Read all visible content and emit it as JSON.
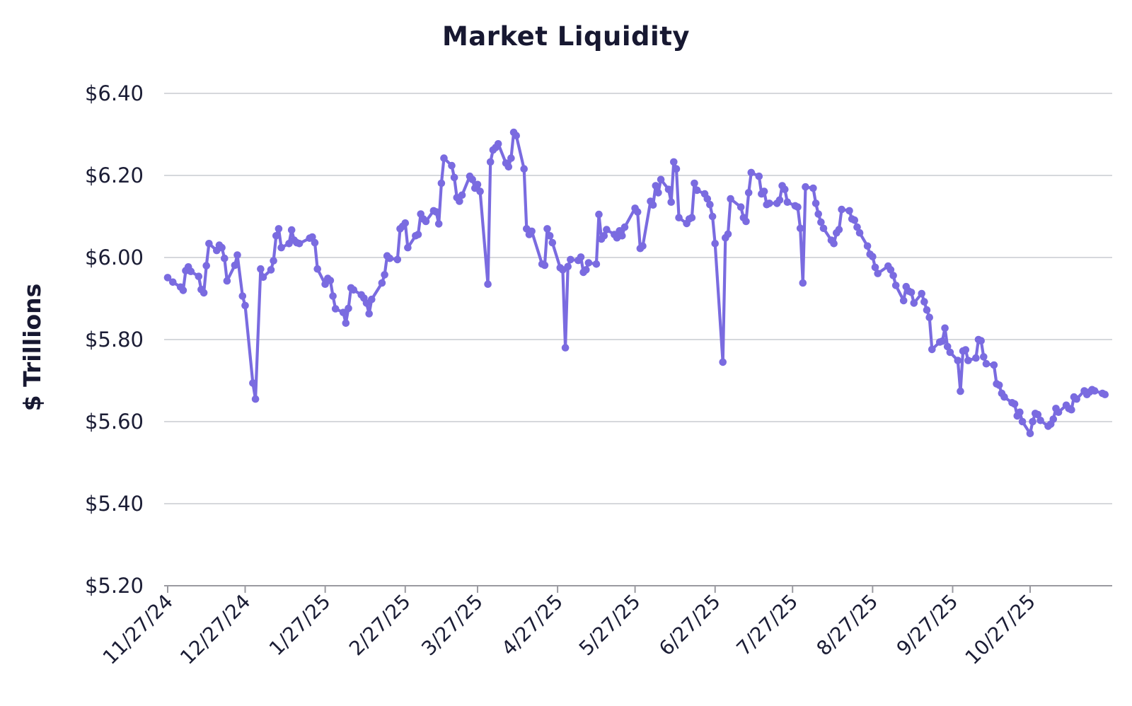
{
  "title": "Market Liquidity",
  "y_axis": {
    "label": "$ Trillions",
    "tick_labels": [
      "$6.40",
      "$6.20",
      "$6.00",
      "$5.80",
      "$5.60",
      "$5.40",
      "$5.20"
    ],
    "tick_values": [
      6.4,
      6.2,
      6.0,
      5.8,
      5.6,
      5.4,
      5.2
    ]
  },
  "x_axis": {
    "tick_labels": [
      "11/27/24",
      "12/27/24",
      "1/27/25",
      "2/27/25",
      "3/27/25",
      "4/27/25",
      "5/27/25",
      "6/27/25",
      "7/27/25",
      "8/27/25",
      "9/27/25",
      "10/27/25"
    ]
  },
  "colors": {
    "line": "#7a6be0",
    "grid": "#c9cbd1",
    "axis": "#9a9aa0",
    "tick_text": "#1b1d35",
    "title_text": "#171831",
    "background": "#ffffff"
  },
  "chart_data": {
    "type": "line",
    "title": "Market Liquidity",
    "xlabel": "",
    "ylabel": "$ Trillions",
    "ylim": [
      5.2,
      6.4
    ],
    "x_start": "11/27/24",
    "x_end": "11/25/25",
    "grid": true,
    "legend_position": "none",
    "marker": "circle",
    "series": [
      {
        "name": "Market Liquidity",
        "dates": [
          "11/27/24",
          "11/29/24",
          "12/2/24",
          "12/3/24",
          "12/4/24",
          "12/5/24",
          "12/6/24",
          "12/9/24",
          "12/10/24",
          "12/11/24",
          "12/12/24",
          "12/13/24",
          "12/16/24",
          "12/17/24",
          "12/18/24",
          "12/19/24",
          "12/20/24",
          "12/23/24",
          "12/24/24",
          "12/26/24",
          "12/27/24",
          "12/30/24",
          "12/31/24",
          "1/2/25",
          "1/3/25",
          "1/6/25",
          "1/7/25",
          "1/8/25",
          "1/9/25",
          "1/10/25",
          "1/13/25",
          "1/14/25",
          "1/15/25",
          "1/16/25",
          "1/17/25",
          "1/21/25",
          "1/22/25",
          "1/23/25",
          "1/24/25",
          "1/27/25",
          "1/28/25",
          "1/29/25",
          "1/30/25",
          "1/31/25",
          "2/3/25",
          "2/4/25",
          "2/5/25",
          "2/6/25",
          "2/7/25",
          "2/10/25",
          "2/11/25",
          "2/12/25",
          "2/13/25",
          "2/14/25",
          "2/18/25",
          "2/19/25",
          "2/20/25",
          "2/21/25",
          "2/24/25",
          "2/25/25",
          "2/26/25",
          "2/27/25",
          "2/28/25",
          "3/3/25",
          "3/4/25",
          "3/5/25",
          "3/6/25",
          "3/7/25",
          "3/10/25",
          "3/11/25",
          "3/12/25",
          "3/13/25",
          "3/14/25",
          "3/17/25",
          "3/18/25",
          "3/19/25",
          "3/20/25",
          "3/21/25",
          "3/24/25",
          "3/25/25",
          "3/26/25",
          "3/27/25",
          "3/28/25",
          "3/31/25",
          "4/1/25",
          "4/2/25",
          "4/3/25",
          "4/4/25",
          "4/7/25",
          "4/8/25",
          "4/9/25",
          "4/10/25",
          "4/11/25",
          "4/14/25",
          "4/15/25",
          "4/16/25",
          "4/17/25",
          "4/21/25",
          "4/22/25",
          "4/23/25",
          "4/24/25",
          "4/25/25",
          "4/28/25",
          "4/29/25",
          "4/30/25",
          "5/1/25",
          "5/2/25",
          "5/5/25",
          "5/6/25",
          "5/7/25",
          "5/8/25",
          "5/9/25",
          "5/12/25",
          "5/13/25",
          "5/14/25",
          "5/15/25",
          "5/16/25",
          "5/19/25",
          "5/20/25",
          "5/21/25",
          "5/22/25",
          "5/23/25",
          "5/27/25",
          "5/28/25",
          "5/29/25",
          "5/30/25",
          "6/2/25",
          "6/3/25",
          "6/4/25",
          "6/5/25",
          "6/6/25",
          "6/9/25",
          "6/10/25",
          "6/11/25",
          "6/12/25",
          "6/13/25",
          "6/16/25",
          "6/17/25",
          "6/18/25",
          "6/19/25",
          "6/20/25",
          "6/23/25",
          "6/24/25",
          "6/25/25",
          "6/26/25",
          "6/27/25",
          "6/30/25",
          "7/1/25",
          "7/2/25",
          "7/3/25",
          "7/7/25",
          "7/8/25",
          "7/9/25",
          "7/10/25",
          "7/11/25",
          "7/14/25",
          "7/15/25",
          "7/16/25",
          "7/17/25",
          "7/18/25",
          "7/21/25",
          "7/22/25",
          "7/23/25",
          "7/24/25",
          "7/25/25",
          "7/28/25",
          "7/29/25",
          "7/30/25",
          "7/31/25",
          "8/1/25",
          "8/4/25",
          "8/5/25",
          "8/6/25",
          "8/7/25",
          "8/8/25",
          "8/11/25",
          "8/12/25",
          "8/13/25",
          "8/14/25",
          "8/15/25",
          "8/18/25",
          "8/19/25",
          "8/20/25",
          "8/21/25",
          "8/22/25",
          "8/25/25",
          "8/26/25",
          "8/27/25",
          "8/28/25",
          "8/29/25",
          "9/2/25",
          "9/3/25",
          "9/4/25",
          "9/5/25",
          "9/8/25",
          "9/9/25",
          "9/10/25",
          "9/11/25",
          "9/12/25",
          "9/15/25",
          "9/16/25",
          "9/17/25",
          "9/18/25",
          "9/19/25",
          "9/22/25",
          "9/23/25",
          "9/24/25",
          "9/25/25",
          "9/26/25",
          "9/29/25",
          "9/30/25",
          "10/1/25",
          "10/2/25",
          "10/3/25",
          "10/6/25",
          "10/7/25",
          "10/8/25",
          "10/9/25",
          "10/10/25",
          "10/13/25",
          "10/14/25",
          "10/15/25",
          "10/16/25",
          "10/17/25",
          "10/20/25",
          "10/21/25",
          "10/22/25",
          "10/23/25",
          "10/24/25",
          "10/27/25",
          "10/28/25",
          "10/29/25",
          "10/30/25",
          "10/31/25",
          "11/3/25",
          "11/4/25",
          "11/5/25",
          "11/6/25",
          "11/7/25",
          "11/10/25",
          "11/11/25",
          "11/12/25",
          "11/13/25",
          "11/14/25",
          "11/17/25",
          "11/18/25",
          "11/19/25",
          "11/20/25",
          "11/21/25",
          "11/24/25",
          "11/25/25"
        ],
        "values": [
          5.951,
          5.94,
          5.928,
          5.92,
          5.968,
          5.977,
          5.966,
          5.954,
          5.922,
          5.914,
          5.98,
          6.034,
          6.017,
          6.03,
          6.024,
          5.998,
          5.943,
          5.981,
          6.006,
          5.906,
          5.883,
          5.694,
          5.655,
          5.972,
          5.952,
          5.97,
          5.992,
          6.053,
          6.07,
          6.024,
          6.034,
          6.067,
          6.042,
          6.036,
          6.034,
          6.047,
          6.05,
          6.036,
          5.972,
          5.935,
          5.949,
          5.944,
          5.906,
          5.875,
          5.866,
          5.84,
          5.876,
          5.926,
          5.921,
          5.909,
          5.901,
          5.889,
          5.863,
          5.898,
          5.938,
          5.958,
          6.004,
          5.998,
          5.995,
          6.07,
          6.076,
          6.084,
          6.024,
          6.053,
          6.056,
          6.106,
          6.094,
          6.088,
          6.114,
          6.111,
          6.082,
          6.181,
          6.242,
          6.224,
          6.195,
          6.146,
          6.137,
          6.152,
          6.198,
          6.19,
          6.169,
          6.178,
          6.161,
          5.935,
          6.233,
          6.262,
          6.268,
          6.277,
          6.23,
          6.221,
          6.242,
          6.305,
          6.297,
          6.216,
          6.07,
          6.056,
          6.064,
          5.984,
          5.981,
          6.07,
          6.053,
          6.036,
          5.975,
          5.97,
          5.78,
          5.978,
          5.995,
          5.993,
          6.001,
          5.964,
          5.97,
          5.987,
          5.984,
          6.105,
          6.045,
          6.053,
          6.068,
          6.056,
          6.048,
          6.065,
          6.053,
          6.074,
          6.12,
          6.111,
          6.022,
          6.028,
          6.137,
          6.128,
          6.175,
          6.158,
          6.19,
          6.166,
          6.135,
          6.233,
          6.216,
          6.097,
          6.083,
          6.094,
          6.097,
          6.181,
          6.164,
          6.155,
          6.143,
          6.129,
          6.1,
          6.034,
          5.745,
          6.048,
          6.057,
          6.143,
          6.123,
          6.097,
          6.088,
          6.158,
          6.207,
          6.198,
          6.155,
          6.161,
          6.129,
          6.132,
          6.132,
          6.14,
          6.175,
          6.166,
          6.135,
          6.126,
          6.123,
          6.071,
          5.938,
          6.172,
          6.169,
          6.132,
          6.106,
          6.086,
          6.071,
          6.042,
          6.034,
          6.06,
          6.068,
          6.117,
          6.114,
          6.094,
          6.091,
          6.074,
          6.06,
          6.028,
          6.008,
          6.002,
          5.976,
          5.961,
          5.979,
          5.97,
          5.956,
          5.932,
          5.895,
          5.929,
          5.918,
          5.915,
          5.889,
          5.912,
          5.892,
          5.872,
          5.854,
          5.776,
          5.794,
          5.796,
          5.828,
          5.783,
          5.769,
          5.749,
          5.674,
          5.772,
          5.775,
          5.749,
          5.755,
          5.8,
          5.797,
          5.758,
          5.741,
          5.738,
          5.692,
          5.689,
          5.669,
          5.66,
          5.646,
          5.643,
          5.614,
          5.623,
          5.6,
          5.571,
          5.6,
          5.62,
          5.617,
          5.603,
          5.589,
          5.594,
          5.606,
          5.632,
          5.623,
          5.64,
          5.632,
          5.629,
          5.66,
          5.655,
          5.675,
          5.666,
          5.672,
          5.678,
          5.675,
          5.669,
          5.666
        ]
      }
    ]
  }
}
